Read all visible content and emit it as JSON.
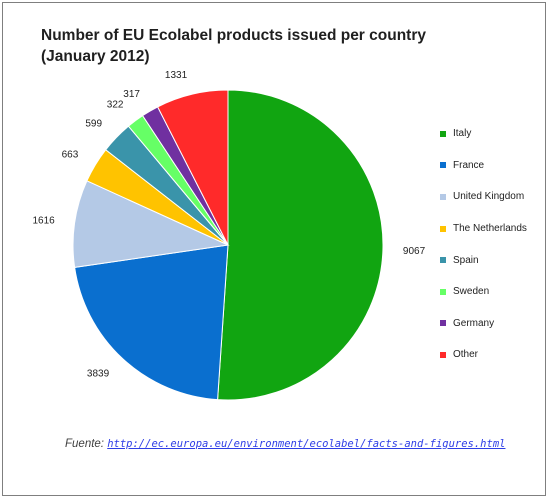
{
  "chart_data": {
    "type": "pie",
    "title": "Number of EU Ecolabel products issued per country (January 2012)",
    "categories": [
      "Italy",
      "France",
      "United Kingdom",
      "The Netherlands",
      "Spain",
      "Sweden",
      "Germany",
      "Other"
    ],
    "values": [
      9067,
      3839,
      1616,
      663,
      599,
      322,
      317,
      1331
    ],
    "colors": [
      "#11a511",
      "#0a6fcf",
      "#b4c9e6",
      "#ffc300",
      "#3a94aa",
      "#66ff66",
      "#7030a0",
      "#ff2a2a"
    ],
    "legend_position": "right"
  },
  "source": {
    "prefix": "Fuente:",
    "link": "http://ec.europa.eu/environment/ecolabel/facts-and-figures.html"
  }
}
